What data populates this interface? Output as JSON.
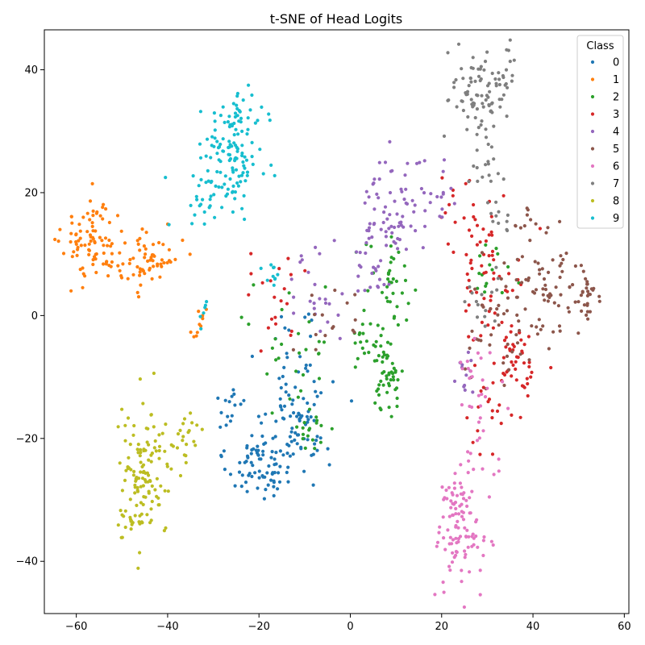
{
  "chart_data": {
    "type": "scatter",
    "title": "t-SNE of Head Logits",
    "xlabel": "",
    "ylabel": "",
    "xlim": [
      -67,
      61
    ],
    "ylim": [
      -48.5,
      46.5
    ],
    "xticks": [
      -60,
      -40,
      -20,
      0,
      20,
      40,
      60
    ],
    "yticks": [
      -40,
      -20,
      0,
      20,
      40
    ],
    "grid": false,
    "legend": {
      "title": "Class",
      "placement": "top-right"
    },
    "series": [
      {
        "name": "0",
        "color": "#1f77b4",
        "clusters": [
          {
            "cx": -20,
            "cy": -24,
            "sx": 3.5,
            "sy": 3,
            "n": 80
          },
          {
            "cx": -11,
            "cy": -17,
            "sx": 3.5,
            "sy": 4,
            "n": 70
          },
          {
            "cx": -26,
            "cy": -15,
            "sx": 2,
            "sy": 3,
            "n": 15
          },
          {
            "cx": -13,
            "cy": -5,
            "sx": 3,
            "sy": 4,
            "n": 20
          }
        ]
      },
      {
        "name": "1",
        "color": "#ff7f0e",
        "clusters": [
          {
            "cx": -56,
            "cy": 12,
            "sx": 3.5,
            "sy": 3.5,
            "n": 90
          },
          {
            "cx": -44,
            "cy": 9,
            "sx": 3.5,
            "sy": 3,
            "n": 60
          },
          {
            "cx": -33,
            "cy": -1,
            "sx": 1.2,
            "sy": 1.5,
            "n": 10
          }
        ]
      },
      {
        "name": "2",
        "color": "#2ca02c",
        "clusters": [
          {
            "cx": 8,
            "cy": -10,
            "sx": 1.8,
            "sy": 3,
            "n": 45
          },
          {
            "cx": 5,
            "cy": -4,
            "sx": 2.5,
            "sy": 2.5,
            "n": 25
          },
          {
            "cx": 9,
            "cy": 4,
            "sx": 3,
            "sy": 4,
            "n": 35
          },
          {
            "cx": -9,
            "cy": -18,
            "sx": 3,
            "sy": 2,
            "n": 20
          },
          {
            "cx": -12,
            "cy": -4,
            "sx": 5,
            "sy": 5,
            "n": 25
          },
          {
            "cx": 31,
            "cy": 8,
            "sx": 2,
            "sy": 3,
            "n": 15
          }
        ]
      },
      {
        "name": "3",
        "color": "#d62728",
        "clusters": [
          {
            "cx": 36,
            "cy": -8,
            "sx": 3,
            "sy": 4,
            "n": 50
          },
          {
            "cx": 30,
            "cy": 8,
            "sx": 4,
            "sy": 6,
            "n": 50
          },
          {
            "cx": 24,
            "cy": 16,
            "sx": 3,
            "sy": 4,
            "n": 20
          },
          {
            "cx": 30,
            "cy": -17,
            "sx": 2.5,
            "sy": 3,
            "n": 15
          },
          {
            "cx": -16,
            "cy": 1,
            "sx": 4,
            "sy": 5,
            "n": 20
          }
        ]
      },
      {
        "name": "4",
        "color": "#9467bd",
        "clusters": [
          {
            "cx": 9,
            "cy": 17,
            "sx": 3,
            "sy": 5,
            "n": 70
          },
          {
            "cx": 18,
            "cy": 20,
            "sx": 3,
            "sy": 3,
            "n": 20
          },
          {
            "cx": 5,
            "cy": 8,
            "sx": 3,
            "sy": 3,
            "n": 15
          },
          {
            "cx": -7,
            "cy": 4,
            "sx": 4,
            "sy": 4,
            "n": 25
          },
          {
            "cx": 25,
            "cy": -9,
            "sx": 1.5,
            "sy": 2,
            "n": 12
          }
        ]
      },
      {
        "name": "5",
        "color": "#8c564b",
        "clusters": [
          {
            "cx": 44,
            "cy": 4,
            "sx": 5,
            "sy": 4,
            "n": 70
          },
          {
            "cx": 52,
            "cy": 3,
            "sx": 2,
            "sy": 2,
            "n": 20
          },
          {
            "cx": 34,
            "cy": -2,
            "sx": 4,
            "sy": 5,
            "n": 40
          },
          {
            "cx": 38,
            "cy": 14,
            "sx": 2,
            "sy": 2,
            "n": 10
          },
          {
            "cx": -5,
            "cy": -1,
            "sx": 4,
            "sy": 4,
            "n": 15
          }
        ]
      },
      {
        "name": "6",
        "color": "#e377c2",
        "clusters": [
          {
            "cx": 24,
            "cy": -34,
            "sx": 2.5,
            "sy": 5,
            "n": 110
          },
          {
            "cx": 30,
            "cy": -15,
            "sx": 2.5,
            "sy": 4,
            "n": 20
          },
          {
            "cx": 25,
            "cy": -8,
            "sx": 2,
            "sy": 2,
            "n": 10
          }
        ]
      },
      {
        "name": "7",
        "color": "#7f7f7f",
        "clusters": [
          {
            "cx": 28,
            "cy": 36,
            "sx": 3,
            "sy": 4,
            "n": 80
          },
          {
            "cx": 34,
            "cy": 40,
            "sx": 1,
            "sy": 2,
            "n": 15
          },
          {
            "cx": 30,
            "cy": 25,
            "sx": 2,
            "sy": 2,
            "n": 15
          },
          {
            "cx": 34,
            "cy": 17,
            "sx": 2,
            "sy": 2,
            "n": 12
          },
          {
            "cx": 28,
            "cy": 2,
            "sx": 3,
            "sy": 4,
            "n": 15
          }
        ]
      },
      {
        "name": "8",
        "color": "#bcbd22",
        "clusters": [
          {
            "cx": -45,
            "cy": -26,
            "sx": 3,
            "sy": 5,
            "n": 120
          },
          {
            "cx": -36,
            "cy": -20,
            "sx": 2,
            "sy": 2.5,
            "n": 20
          },
          {
            "cx": -47,
            "cy": -34,
            "sx": 1.5,
            "sy": 1.5,
            "n": 15
          }
        ]
      },
      {
        "name": "9",
        "color": "#17becf",
        "clusters": [
          {
            "cx": -26,
            "cy": 26,
            "sx": 3.5,
            "sy": 4,
            "n": 120
          },
          {
            "cx": -24,
            "cy": 32,
            "sx": 2,
            "sy": 2,
            "n": 20
          },
          {
            "cx": -34,
            "cy": 18,
            "sx": 2,
            "sy": 3,
            "n": 15
          },
          {
            "cx": -17,
            "cy": 7,
            "sx": 1.2,
            "sy": 1.2,
            "n": 10
          },
          {
            "cx": -32,
            "cy": 0,
            "sx": 1,
            "sy": 1.5,
            "n": 6
          }
        ]
      }
    ]
  }
}
